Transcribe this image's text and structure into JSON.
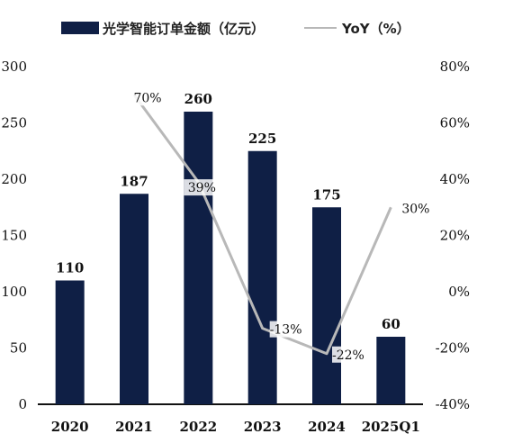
{
  "chart_data": {
    "type": "bar",
    "categories": [
      "2020",
      "2021",
      "2022",
      "2023",
      "2024",
      "2025Q1"
    ],
    "series": [
      {
        "name": "光学智能订单金额（亿元）",
        "type": "bar",
        "axis": "left",
        "values": [
          110,
          187,
          260,
          225,
          175,
          60
        ],
        "color": "#0f1f45"
      },
      {
        "name": "YoY（%）",
        "type": "line",
        "axis": "right",
        "values": [
          null,
          70,
          39,
          -13,
          -22,
          30
        ],
        "color": "#b8b8b8"
      }
    ],
    "bar_labels": [
      "110",
      "187",
      "260",
      "225",
      "175",
      "60"
    ],
    "line_labels": [
      "",
      "70%",
      "39%",
      "-13%",
      "-22%",
      "30%"
    ],
    "left_axis": {
      "ylim": [
        0,
        300
      ],
      "ticks": [
        "0",
        "50",
        "100",
        "150",
        "200",
        "250",
        "300"
      ]
    },
    "right_axis": {
      "ylim": [
        -40,
        80
      ],
      "ticks": [
        "-40%",
        "-20%",
        "0%",
        "20%",
        "40%",
        "60%",
        "80%"
      ]
    },
    "legend_position": "top",
    "grid": false
  }
}
